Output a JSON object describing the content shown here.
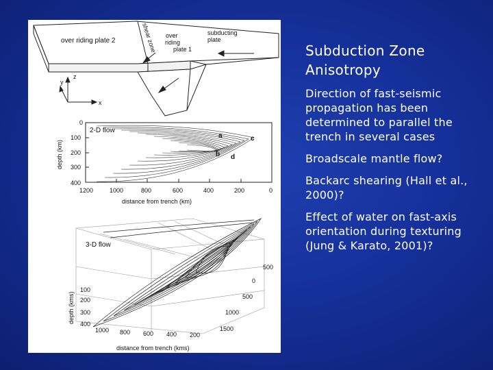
{
  "slide": {
    "title": "Subduction Zone Anisotropy",
    "bullets": [
      "Direction of fast-seismic propagation has been determined to parallel the trench in several cases",
      "Broadscale mantle flow?",
      "Backarc shearing (Hall et al., 2000)?",
      "Effect of water on fast-axis orientation during texturing (Jung & Karato, 2001)?"
    ]
  },
  "figure": {
    "block_diagram": {
      "over_riding_plate_2": "over riding plate 2",
      "shear_zone": "shear zone",
      "over_riding_plate_1": [
        "over",
        "riding",
        "plate 1"
      ],
      "subducting_plate": [
        "subducting",
        "plate"
      ],
      "axis_labels": {
        "z": "z",
        "y": "y",
        "x": "x"
      }
    },
    "panel_2d": {
      "label": "2-D  flow",
      "ylabel": "depth (km)",
      "xlabel": "distance from trench (km)",
      "y_ticks": [
        "0",
        "100",
        "200",
        "300",
        "400"
      ],
      "x_ticks": [
        "1200",
        "1000",
        "800",
        "600",
        "400",
        "200",
        "0"
      ],
      "point_labels": [
        "a",
        "b",
        "c",
        "d"
      ]
    },
    "panel_3d": {
      "label": "3-D  flow",
      "ylabel": "depth (kms)",
      "xlabel": "distance from trench (kms)",
      "y_ticks": [
        "100",
        "200",
        "300",
        "400"
      ],
      "x_ticks": [
        "1000",
        "800",
        "600",
        "400",
        "200"
      ],
      "side_ticks": [
        "500",
        "0",
        "500",
        "1000",
        "1500"
      ]
    }
  }
}
